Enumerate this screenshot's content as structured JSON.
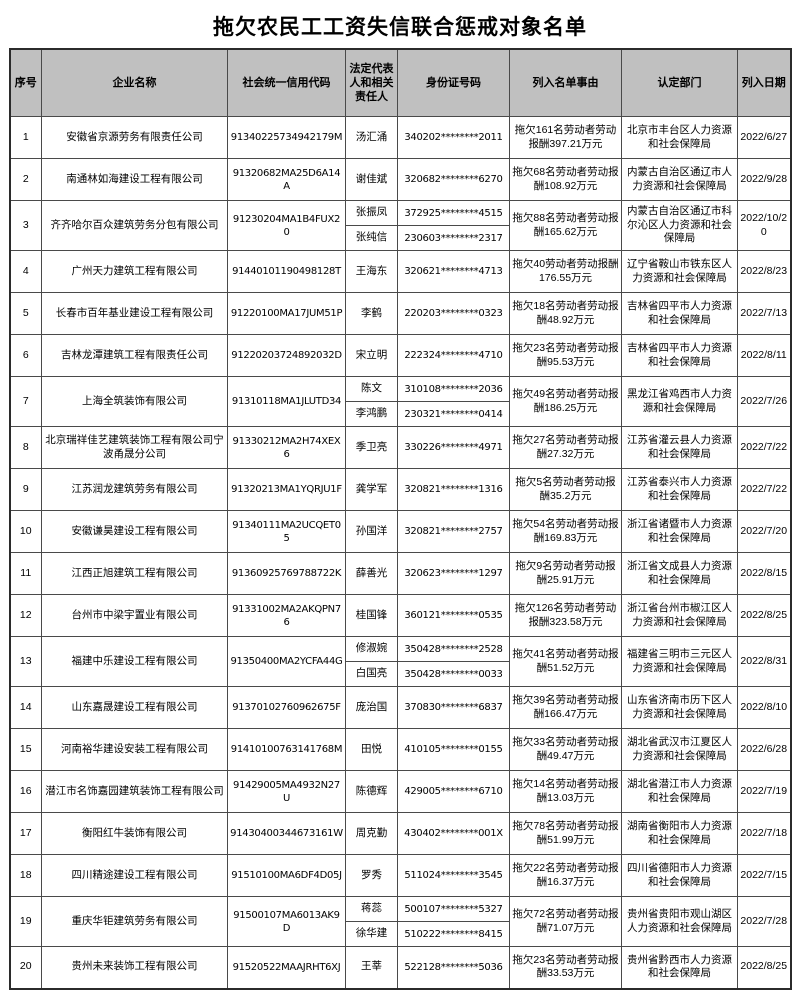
{
  "title": "拖欠农民工工资失信联合惩戒对象名单",
  "table": {
    "headers": [
      "序号",
      "企业名称",
      "社会统一信用代码",
      "法定代表人和相关责任人",
      "身份证号码",
      "列入名单事由",
      "认定部门",
      "列入日期"
    ],
    "rows": [
      {
        "no": "1",
        "company": "安徽省京源劳务有限责任公司",
        "credit_code": "91340225734942179M",
        "persons": [
          {
            "name": "汤汇涌",
            "id": "340202********2011"
          }
        ],
        "reason": "拖欠161名劳动者劳动报酬397.21万元",
        "department": "北京市丰台区人力资源和社会保障局",
        "date": "2022/6/27"
      },
      {
        "no": "2",
        "company": "南通林如海建设工程有限公司",
        "credit_code": "91320682MA25D6A14A",
        "persons": [
          {
            "name": "谢佳斌",
            "id": "320682********6270"
          }
        ],
        "reason": "拖欠68名劳动者劳动报酬108.92万元",
        "department": "内蒙古自治区通辽市人力资源和社会保障局",
        "date": "2022/9/28"
      },
      {
        "no": "3",
        "company": "齐齐哈尔百众建筑劳务分包有限公司",
        "credit_code": "91230204MA1B4FUX20",
        "persons": [
          {
            "name": "张振凤",
            "id": "372925********4515"
          },
          {
            "name": "张纯信",
            "id": "230603********2317"
          }
        ],
        "reason": "拖欠88名劳动者劳动报酬165.62万元",
        "department": "内蒙古自治区通辽市科尔沁区人力资源和社会保障局",
        "date": "2022/10/20"
      },
      {
        "no": "4",
        "company": "广州天力建筑工程有限公司",
        "credit_code": "91440101190498128T",
        "persons": [
          {
            "name": "王海东",
            "id": "320621********4713"
          }
        ],
        "reason": "拖欠40劳动者劳动报酬176.55万元",
        "department": "辽宁省鞍山市铁东区人力资源和社会保障局",
        "date": "2022/8/23"
      },
      {
        "no": "5",
        "company": "长春市百年基业建设工程有限公司",
        "credit_code": "91220100MA17JUM51P",
        "persons": [
          {
            "name": "李鹤",
            "id": "220203********0323"
          }
        ],
        "reason": "拖欠18名劳动者劳动报酬48.92万元",
        "department": "吉林省四平市人力资源和社会保障局",
        "date": "2022/7/13"
      },
      {
        "no": "6",
        "company": "吉林龙潭建筑工程有限责任公司",
        "credit_code": "91220203724892032D",
        "persons": [
          {
            "name": "宋立明",
            "id": "222324********4710"
          }
        ],
        "reason": "拖欠23名劳动者劳动报酬95.53万元",
        "department": "吉林省四平市人力资源和社会保障局",
        "date": "2022/8/11"
      },
      {
        "no": "7",
        "company": "上海全筑装饰有限公司",
        "credit_code": "91310118MA1JLUTD34",
        "persons": [
          {
            "name": "陈文",
            "id": "310108********2036"
          },
          {
            "name": "李鸿鹏",
            "id": "230321********0414"
          }
        ],
        "reason": "拖欠49名劳动者劳动报酬186.25万元",
        "department": "黑龙江省鸡西市人力资源和社会保障局",
        "date": "2022/7/26"
      },
      {
        "no": "8",
        "company": "北京瑞祥佳艺建筑装饰工程有限公司宁波甬晟分公司",
        "credit_code": "91330212MA2H74XEX6",
        "persons": [
          {
            "name": "季卫亮",
            "id": "330226********4971"
          }
        ],
        "reason": "拖欠27名劳动者劳动报酬27.32万元",
        "department": "江苏省灌云县人力资源和社会保障局",
        "date": "2022/7/22"
      },
      {
        "no": "9",
        "company": "江苏润龙建筑劳务有限公司",
        "credit_code": "91320213MA1YQRJU1F",
        "persons": [
          {
            "name": "龚学军",
            "id": "320821********1316"
          }
        ],
        "reason": "拖欠5名劳动者劳动报酬35.2万元",
        "department": "江苏省泰兴市人力资源和社会保障局",
        "date": "2022/7/22"
      },
      {
        "no": "10",
        "company": "安徽谦昊建设工程有限公司",
        "credit_code": "91340111MA2UCQET05",
        "persons": [
          {
            "name": "孙国洋",
            "id": "320821********2757"
          }
        ],
        "reason": "拖欠54名劳动者劳动报酬169.83万元",
        "department": "浙江省诸暨市人力资源和社会保障局",
        "date": "2022/7/20"
      },
      {
        "no": "11",
        "company": "江西正旭建筑工程有限公司",
        "credit_code": "91360925769788722K",
        "persons": [
          {
            "name": "薛善光",
            "id": "320623********1297"
          }
        ],
        "reason": "拖欠9名劳动者劳动报酬25.91万元",
        "department": "浙江省文成县人力资源和社会保障局",
        "date": "2022/8/15"
      },
      {
        "no": "12",
        "company": "台州市中梁宇置业有限公司",
        "credit_code": "91331002MA2AKQPN76",
        "persons": [
          {
            "name": "桂国锋",
            "id": "360121********0535"
          }
        ],
        "reason": "拖欠126名劳动者劳动报酬323.58万元",
        "department": "浙江省台州市椒江区人力资源和社会保障局",
        "date": "2022/8/25"
      },
      {
        "no": "13",
        "company": "福建中乐建设工程有限公司",
        "credit_code": "91350400MA2YCFA44G",
        "persons": [
          {
            "name": "修淑婉",
            "id": "350428********2528"
          },
          {
            "name": "白国亮",
            "id": "350428********0033"
          }
        ],
        "reason": "拖欠41名劳动者劳动报酬51.52万元",
        "department": "福建省三明市三元区人力资源和社会保障局",
        "date": "2022/8/31"
      },
      {
        "no": "14",
        "company": "山东嘉晟建设工程有限公司",
        "credit_code": "91370102760962675F",
        "persons": [
          {
            "name": "庞治国",
            "id": "370830********6837"
          }
        ],
        "reason": "拖欠39名劳动者劳动报酬166.47万元",
        "department": "山东省济南市历下区人力资源和社会保障局",
        "date": "2022/8/10"
      },
      {
        "no": "15",
        "company": "河南裕华建设安装工程有限公司",
        "credit_code": "91410100763141768M",
        "persons": [
          {
            "name": "田悦",
            "id": "410105********0155"
          }
        ],
        "reason": "拖欠33名劳动者劳动报酬49.47万元",
        "department": "湖北省武汉市江夏区人力资源和社会保障局",
        "date": "2022/6/28"
      },
      {
        "no": "16",
        "company": "潜江市名饰嘉园建筑装饰工程有限公司",
        "credit_code": "91429005MA4932N27U",
        "persons": [
          {
            "name": "陈德辉",
            "id": "429005********6710"
          }
        ],
        "reason": "拖欠14名劳动者劳动报酬13.03万元",
        "department": "湖北省潜江市人力资源和社会保障局",
        "date": "2022/7/19"
      },
      {
        "no": "17",
        "company": "衡阳红牛装饰有限公司",
        "credit_code": "91430400344673161W",
        "persons": [
          {
            "name": "周克勤",
            "id": "430402********001X"
          }
        ],
        "reason": "拖欠78名劳动者劳动报酬51.99万元",
        "department": "湖南省衡阳市人力资源和社会保障局",
        "date": "2022/7/18"
      },
      {
        "no": "18",
        "company": "四川精途建设工程有限公司",
        "credit_code": "91510100MA6DF4D05J",
        "persons": [
          {
            "name": "罗秀",
            "id": "511024********3545"
          }
        ],
        "reason": "拖欠22名劳动者劳动报酬16.37万元",
        "department": "四川省德阳市人力资源和社会保障局",
        "date": "2022/7/15"
      },
      {
        "no": "19",
        "company": "重庆华钜建筑劳务有限公司",
        "credit_code": "91500107MA6013AK9D",
        "persons": [
          {
            "name": "蒋蕊",
            "id": "500107********5327"
          },
          {
            "name": "徐华建",
            "id": "510222********8415"
          }
        ],
        "reason": "拖欠72名劳动者劳动报酬71.07万元",
        "department": "贵州省贵阳市观山湖区人力资源和社会保障局",
        "date": "2022/7/28"
      },
      {
        "no": "20",
        "company": "贵州未来装饰工程有限公司",
        "credit_code": "91520522MAAJRHT6XJ",
        "persons": [
          {
            "name": "王莘",
            "id": "522128********5036"
          }
        ],
        "reason": "拖欠23名劳动者劳动报酬33.53万元",
        "department": "贵州省黔西市人力资源和社会保障局",
        "date": "2022/8/25"
      }
    ]
  }
}
